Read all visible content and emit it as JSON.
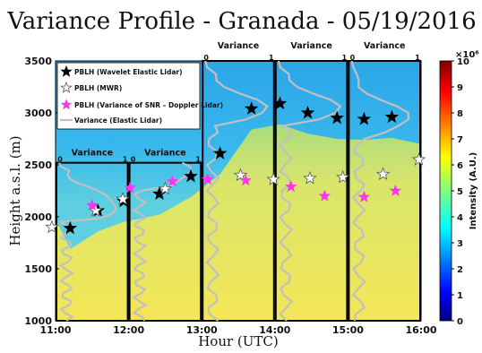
{
  "chart_data": {
    "type": "scatter",
    "title": "Variance Profile - Granada - 05/19/2016",
    "xlabel": "Hour (UTC)",
    "ylabel": "Height a.s.l.  (m)",
    "xlim": [
      11.0,
      16.0
    ],
    "ylim": [
      1000,
      3500
    ],
    "x_ticks": [
      "11:00",
      "12:00",
      "13:00",
      "14:00",
      "15:00",
      "16:00"
    ],
    "y_ticks": [
      "1000",
      "1500",
      "2000",
      "2500",
      "3000",
      "3500"
    ],
    "colorbar": {
      "label": "Intensity (A.U.)",
      "multiplier": "×10⁶",
      "range": [
        0,
        10
      ],
      "ticks": [
        "0",
        "1",
        "2",
        "3",
        "4",
        "5",
        "6",
        "7",
        "8",
        "9",
        "10"
      ]
    },
    "legend": [
      "PBLH (Wavelet Elastic Lidar)",
      "PBLH (MWR)",
      "PBLH (Variance of SNR – Doppler Lidar)",
      "Variance (Elastic Lidar)"
    ],
    "legend_position": "upper-left",
    "colors": {
      "wavelet": "#000000",
      "mwr": "#ffffff",
      "doppler": "#ff33ee",
      "variance": "#c0c0c0"
    },
    "variance_panels": [
      {
        "label": "Variance",
        "x_start": 11.0,
        "x_end": 12.0,
        "top_height": 2520,
        "scale_min": "0",
        "scale_max": "1"
      },
      {
        "label": "Variance",
        "x_start": 12.0,
        "x_end": 13.0,
        "top_height": 2520,
        "scale_min": "0",
        "scale_max": "1"
      },
      {
        "label": "Variance",
        "x_start": 13.0,
        "x_end": 14.0,
        "top_height": 3500,
        "scale_min": "0",
        "scale_max": "1"
      },
      {
        "label": "Variance",
        "x_start": 14.0,
        "x_end": 15.0,
        "top_height": 3500,
        "scale_min": "",
        "scale_max": "1"
      },
      {
        "label": "Variance",
        "x_start": 15.0,
        "x_end": 16.0,
        "top_height": 3500,
        "scale_min": "0",
        "scale_max": "1"
      }
    ],
    "series": [
      {
        "name": "PBLH (Wavelet Elastic Lidar)",
        "x": [
          11.2,
          11.58,
          11.93,
          12.42,
          12.85,
          13.25,
          13.68,
          14.07,
          14.45,
          14.85,
          15.22,
          15.6
        ],
        "y": [
          1890,
          2060,
          2150,
          2220,
          2390,
          2610,
          3040,
          3090,
          3000,
          2950,
          2940,
          2960
        ]
      },
      {
        "name": "PBLH (MWR)",
        "x": [
          10.95,
          11.55,
          11.92,
          12.5,
          13.53,
          13.98,
          14.48,
          14.93,
          15.48,
          15.97
        ],
        "y": [
          1900,
          2060,
          2170,
          2270,
          2400,
          2360,
          2370,
          2380,
          2410,
          2550
        ]
      },
      {
        "name": "PBLH (Variance of SNR – Doppler Lidar)",
        "x": [
          11.5,
          12.02,
          12.6,
          13.08,
          13.6,
          14.22,
          14.68,
          15.22,
          15.65
        ],
        "y": [
          2110,
          2280,
          2340,
          2360,
          2350,
          2290,
          2200,
          2190,
          2250
        ]
      }
    ]
  }
}
